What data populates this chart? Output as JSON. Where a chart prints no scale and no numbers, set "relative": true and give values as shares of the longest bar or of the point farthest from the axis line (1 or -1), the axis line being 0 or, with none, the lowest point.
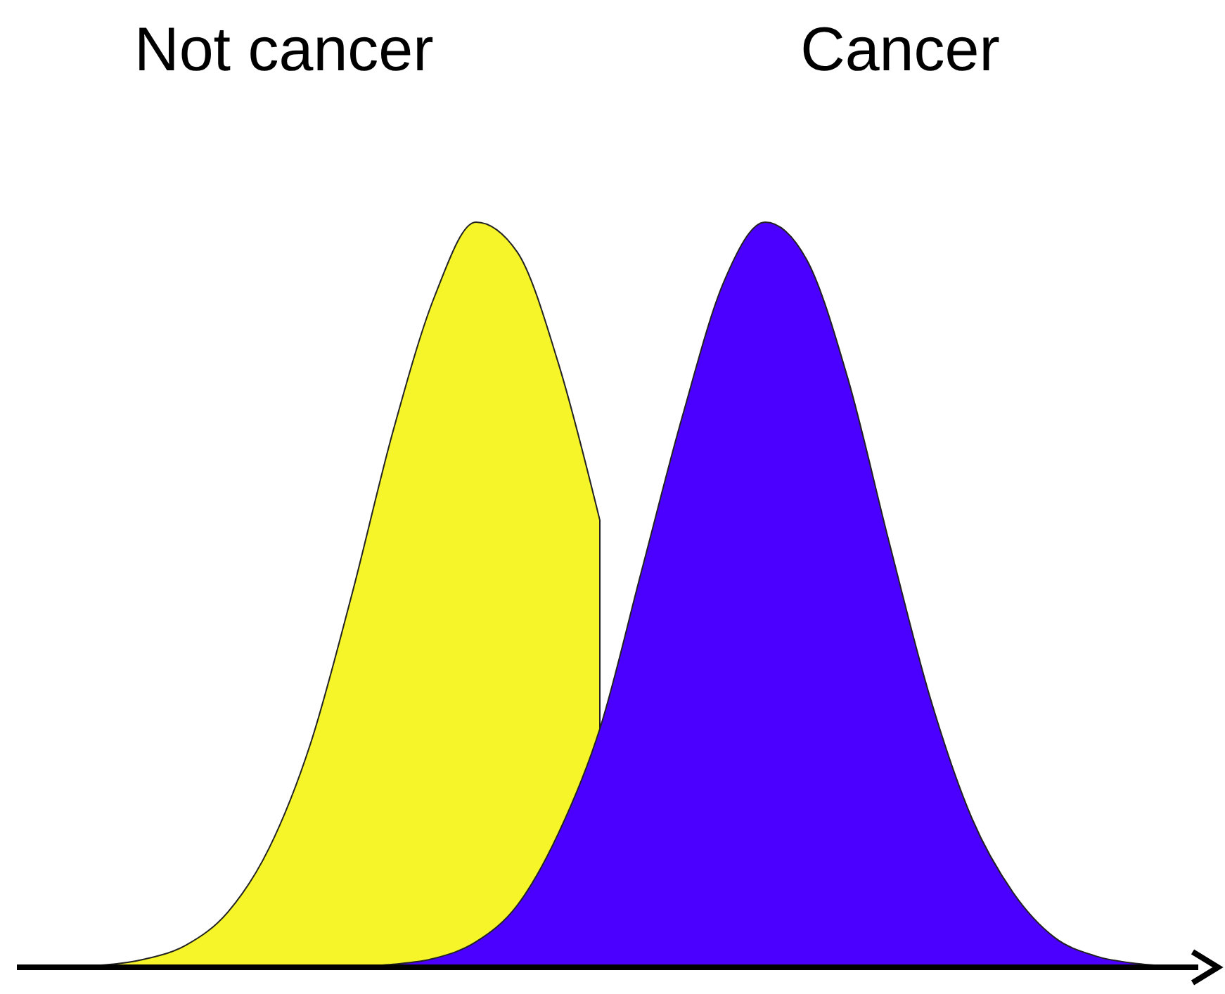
{
  "chart_data": {
    "type": "area",
    "relative": true,
    "categories": [
      null,
      null,
      null,
      null,
      null,
      null,
      null,
      null,
      null,
      null,
      null,
      null,
      null,
      null,
      null,
      null,
      null,
      null,
      null,
      null,
      null,
      null,
      null,
      null,
      null,
      null,
      null,
      null,
      null
    ],
    "series": [
      {
        "name": "Not cancer",
        "color": "#f5f52a",
        "values": [
          0,
          0.001,
          0.003,
          0.011,
          0.03,
          0.074,
          0.16,
          0.3,
          0.5,
          0.72,
          0.9,
          1,
          0.96,
          0.81,
          0.6,
          null,
          null,
          null,
          null,
          null,
          null,
          null,
          null,
          null,
          null,
          null,
          null,
          null,
          null
        ]
      },
      {
        "name": "Cancer",
        "color": "#4b00ff",
        "values": [
          0,
          0,
          0,
          0,
          0,
          0,
          0,
          0,
          0.001,
          0.004,
          0.012,
          0.034,
          0.083,
          0.18,
          0.32,
          0.53,
          0.74,
          0.92,
          1,
          0.95,
          0.79,
          0.57,
          0.36,
          0.2,
          0.1,
          0.04,
          0.015,
          0.005,
          0.001
        ]
      }
    ],
    "legend": false
  }
}
